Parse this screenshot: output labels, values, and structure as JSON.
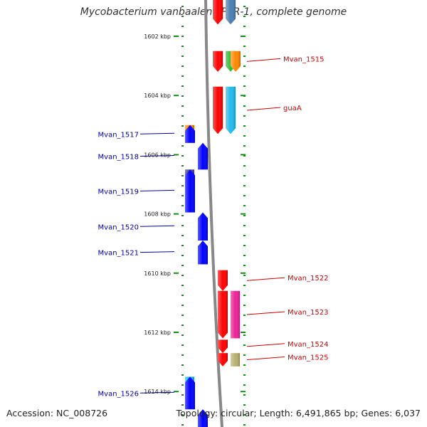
{
  "title": "Mycobacterium vanbaalenii PYR-1, complete genome",
  "footer": {
    "accession": "Accession: NC_008726",
    "summary": "Topology: circular; Length: 6,491,865 bp; Genes: 6,037"
  },
  "kbp_labels": [
    "1602 kbp",
    "1604 kbp",
    "1606 kbp",
    "1608 kbp",
    "1610 kbp",
    "1612 kbp",
    "1614 kbp"
  ],
  "colors": {
    "forward": "#ff0000",
    "reverse": "#0000ff",
    "forward_label": "#cc0000",
    "reverse_label": "#0000aa",
    "tick": "#1a8a1a",
    "backbone": "#888888"
  },
  "genes": [
    {
      "strand": "forward",
      "start": 1600.7,
      "end": 1601.6,
      "color": "#ff0000",
      "direction": "down",
      "label": ""
    },
    {
      "strand": "forward",
      "start": 1600.7,
      "end": 1601.6,
      "color": "#4a7fb0",
      "direction": "down",
      "label": ""
    },
    {
      "strand": "forward",
      "start": 1602.5,
      "end": 1603.2,
      "color": "#ff0000",
      "direction": "down",
      "label": "Mvan_1515"
    },
    {
      "strand": "forward",
      "start": 1602.5,
      "end": 1603.2,
      "color": "#33bb33",
      "direction": "down",
      "label": ""
    },
    {
      "strand": "forward",
      "start": 1602.5,
      "end": 1603.2,
      "color": "#ff8800",
      "direction": "down",
      "label": ""
    },
    {
      "strand": "forward",
      "start": 1603.7,
      "end": 1605.3,
      "color": "#ff0000",
      "direction": "down",
      "label": "guaA"
    },
    {
      "strand": "forward",
      "start": 1603.7,
      "end": 1605.3,
      "color": "#22bbee",
      "direction": "down",
      "label": ""
    },
    {
      "strand": "reverse",
      "start": 1605.0,
      "end": 1605.6,
      "color": "#ff8800",
      "direction": "none",
      "label": "Mvan_1517"
    },
    {
      "strand": "reverse",
      "start": 1605.0,
      "end": 1605.6,
      "color": "#0000ff",
      "direction": "up",
      "label": ""
    },
    {
      "strand": "reverse",
      "start": 1605.6,
      "end": 1606.5,
      "color": "#0000ff",
      "direction": "up",
      "label": "Mvan_1518"
    },
    {
      "strand": "reverse",
      "start": 1606.5,
      "end": 1607.95,
      "color": "#444488",
      "direction": "none",
      "label": "Mvan_1519"
    },
    {
      "strand": "reverse",
      "start": 1606.5,
      "end": 1607.95,
      "color": "#0000ff",
      "direction": "up",
      "label": ""
    },
    {
      "strand": "reverse",
      "start": 1607.95,
      "end": 1608.9,
      "color": "#0000ff",
      "direction": "up",
      "label": "Mvan_1520"
    },
    {
      "strand": "reverse",
      "start": 1608.9,
      "end": 1609.7,
      "color": "#0000ff",
      "direction": "up",
      "label": "Mvan_1521"
    },
    {
      "strand": "forward",
      "start": 1609.9,
      "end": 1610.6,
      "color": "#ff0000",
      "direction": "down",
      "label": "Mvan_1522"
    },
    {
      "strand": "forward",
      "start": 1610.6,
      "end": 1612.2,
      "color": "#ff0000",
      "direction": "down",
      "label": "Mvan_1523"
    },
    {
      "strand": "forward",
      "start": 1610.6,
      "end": 1612.2,
      "color": "#ee2299",
      "direction": "none",
      "label": ""
    },
    {
      "strand": "forward",
      "start": 1612.25,
      "end": 1612.7,
      "color": "#ff0000",
      "direction": "down",
      "label": "Mvan_1524"
    },
    {
      "strand": "forward",
      "start": 1612.7,
      "end": 1613.15,
      "color": "#ff0000",
      "direction": "down",
      "label": "Mvan_1525"
    },
    {
      "strand": "forward",
      "start": 1612.7,
      "end": 1613.15,
      "color": "#b8b070",
      "direction": "none",
      "label": ""
    },
    {
      "strand": "reverse",
      "start": 1613.5,
      "end": 1614.6,
      "color": "#22bbee",
      "direction": "none",
      "label": "Mvan_1526"
    },
    {
      "strand": "reverse",
      "start": 1613.5,
      "end": 1614.6,
      "color": "#0000ff",
      "direction": "up",
      "label": ""
    },
    {
      "strand": "reverse",
      "start": 1614.6,
      "end": 1615.5,
      "color": "#0000ff",
      "direction": "up",
      "label": ""
    }
  ]
}
